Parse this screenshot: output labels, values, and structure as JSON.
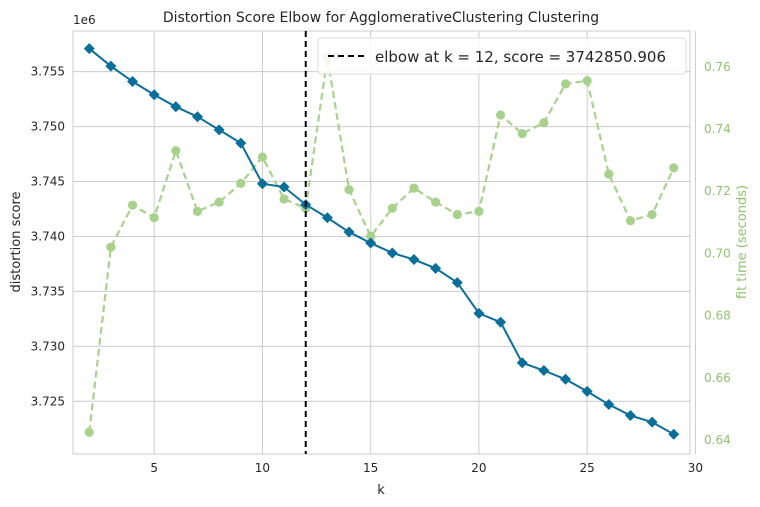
{
  "chart_data": {
    "type": "line",
    "title": "Distortion Score Elbow for AgglomerativeClustering Clustering",
    "xlabel": "k",
    "ylabel": "distortion score",
    "y2label": "fit time (seconds)",
    "y_offset_label": "1e6",
    "y_multiplier": 1000000,
    "xlim": [
      1.25,
      29.75
    ],
    "ylim": [
      3.7202,
      3.7587
    ],
    "y2lim": [
      0.6355,
      0.7715
    ],
    "x_ticks": [
      5,
      10,
      15,
      20,
      25,
      30
    ],
    "y_ticks": [
      3.725,
      3.73,
      3.735,
      3.74,
      3.745,
      3.75,
      3.755
    ],
    "y2_ticks": [
      0.64,
      0.66,
      0.68,
      0.7,
      0.72,
      0.74,
      0.76
    ],
    "x_tick_labels": [
      "5",
      "10",
      "15",
      "20",
      "25",
      "30"
    ],
    "y_tick_labels": [
      "3.725",
      "3.730",
      "3.735",
      "3.740",
      "3.745",
      "3.750",
      "3.755"
    ],
    "y2_tick_labels": [
      "0.64",
      "0.66",
      "0.68",
      "0.70",
      "0.72",
      "0.74",
      "0.76"
    ],
    "grid": true,
    "legend_placement": "top-right",
    "elbow_k": 12,
    "legend_label": "elbow at k = 12, score = 3742850.906",
    "colors": {
      "distortion": "#0a6e9a",
      "fit_time": "#a9d18e",
      "elbow": "#000000",
      "grid": "#cccccc",
      "right_axis": "#8fc36e"
    },
    "x": [
      2,
      3,
      4,
      5,
      6,
      7,
      8,
      9,
      10,
      11,
      12,
      13,
      14,
      15,
      16,
      17,
      18,
      19,
      20,
      21,
      22,
      23,
      24,
      25,
      26,
      27,
      28,
      29
    ],
    "series": [
      {
        "axis": "left",
        "values": [
          3.7571,
          3.7555,
          3.7541,
          3.7529,
          3.7518,
          3.7509,
          3.7497,
          3.7485,
          3.7448,
          3.7445,
          3.7429,
          3.7417,
          3.7404,
          3.7394,
          3.7385,
          3.7379,
          3.7371,
          3.7358,
          3.733,
          3.7322,
          3.7285,
          3.7278,
          3.727,
          3.7259,
          3.7247,
          3.7237,
          3.7231,
          3.722
        ]
      },
      {
        "axis": "right",
        "values": [
          0.6425,
          0.702,
          0.7155,
          0.7115,
          0.733,
          0.7135,
          0.7165,
          0.7225,
          0.731,
          0.7175,
          0.7145,
          0.763,
          0.7205,
          0.7055,
          0.7145,
          0.721,
          0.7165,
          0.7125,
          0.7135,
          0.7445,
          0.7385,
          0.742,
          0.7545,
          0.7555,
          0.7255,
          0.7105,
          0.7125,
          0.7275
        ]
      }
    ]
  }
}
